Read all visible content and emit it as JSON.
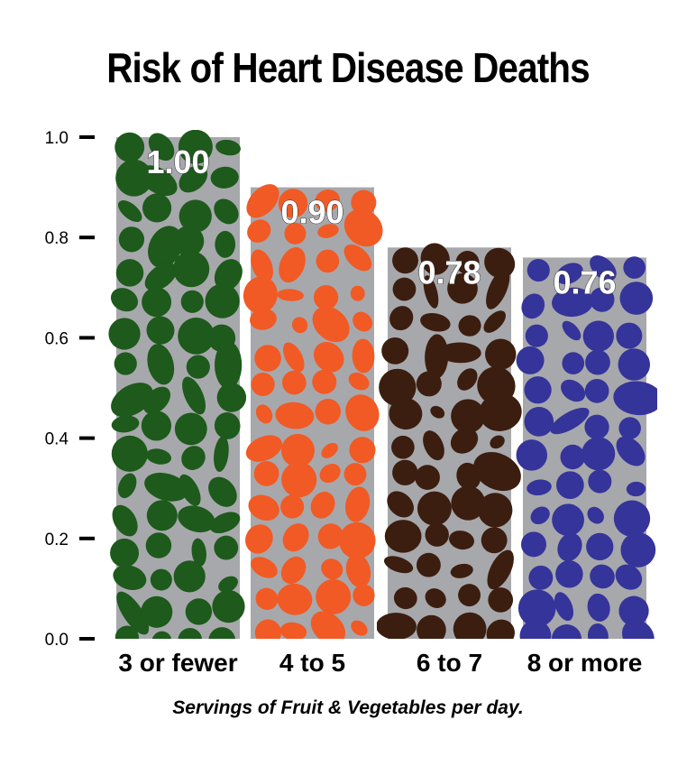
{
  "chart_data": {
    "type": "bar",
    "title": "Risk of Heart Disease Deaths",
    "xlabel": "Servings of Fruit & Vegetables per day.",
    "ylabel": "",
    "categories": [
      "3 or fewer",
      "4 to 5",
      "6 to 7",
      "8 or more"
    ],
    "values": [
      1.0,
      0.9,
      0.78,
      0.76
    ],
    "data_labels": [
      "1.00",
      "0.90",
      "0.78",
      "0.76"
    ],
    "ylim": [
      0,
      1.0
    ],
    "yticks": [
      "0.0",
      "0.2",
      "0.4",
      "0.6",
      "0.8",
      "1.0"
    ],
    "grid": false,
    "bar_background_color": "#a7a8ac",
    "bar_colors": [
      "#1d5a1b",
      "#f15a24",
      "#3b1e0f",
      "#35349a"
    ],
    "bar_fill": "fruit-and-vegetable-silhouettes"
  }
}
